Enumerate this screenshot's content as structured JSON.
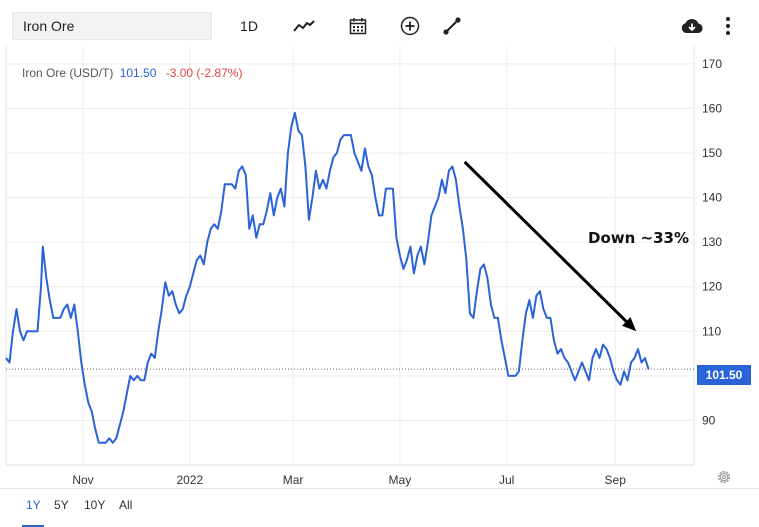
{
  "toolbar": {
    "search_value": "Iron Ore",
    "interval_label": "1D",
    "icons": [
      "line-chart-icon",
      "calendar-icon",
      "add-icon",
      "draw-icon",
      "download-icon",
      "more-icon"
    ]
  },
  "legend": {
    "name": "Iron Ore (USD/T)",
    "last": "101.50",
    "change": "-3.00 (-2.87%)"
  },
  "price_flag": "101.50",
  "annotation": "Down ~33%",
  "ranges": [
    "1Y",
    "5Y",
    "10Y",
    "All"
  ],
  "active_range": "1Y",
  "colors": {
    "line": "#2a63d8",
    "negative": "#e04646",
    "grid": "#ececec",
    "arrow": "#000000"
  },
  "chart_data": {
    "type": "line",
    "title": "",
    "xlabel": "",
    "ylabel": "",
    "yticks": [
      90,
      100,
      110,
      120,
      130,
      140,
      150,
      160,
      170
    ],
    "ytick_labels_shown": [
      "90",
      "110",
      "120",
      "130",
      "140",
      "150",
      "160",
      "170"
    ],
    "ylim": [
      80,
      174
    ],
    "xticks": [
      {
        "date": "2021-11-01",
        "label": "Nov"
      },
      {
        "date": "2022-01-01",
        "label": "2022"
      },
      {
        "date": "2022-03-01",
        "label": "Mar"
      },
      {
        "date": "2022-05-01",
        "label": "May"
      },
      {
        "date": "2022-07-01",
        "label": "Jul"
      },
      {
        "date": "2022-09-01",
        "label": "Sep"
      }
    ],
    "xlim": [
      "2021-09-18",
      "2022-10-16"
    ],
    "grid": true,
    "reference_line": 101.5,
    "series": [
      {
        "points": [
          [
            "2021-09-18",
            104
          ],
          [
            "2021-09-20",
            103
          ],
          [
            "2021-09-22",
            110
          ],
          [
            "2021-09-24",
            115
          ],
          [
            "2021-09-26",
            110
          ],
          [
            "2021-09-28",
            108
          ],
          [
            "2021-09-30",
            110
          ],
          [
            "2021-10-04",
            110
          ],
          [
            "2021-10-06",
            110
          ],
          [
            "2021-10-08",
            120
          ],
          [
            "2021-10-09",
            129
          ],
          [
            "2021-10-11",
            122
          ],
          [
            "2021-10-13",
            117
          ],
          [
            "2021-10-15",
            113
          ],
          [
            "2021-10-17",
            113
          ],
          [
            "2021-10-19",
            113
          ],
          [
            "2021-10-21",
            115
          ],
          [
            "2021-10-23",
            116
          ],
          [
            "2021-10-25",
            113
          ],
          [
            "2021-10-27",
            116
          ],
          [
            "2021-10-29",
            110
          ],
          [
            "2021-10-31",
            103
          ],
          [
            "2021-11-02",
            98
          ],
          [
            "2021-11-04",
            94
          ],
          [
            "2021-11-06",
            92
          ],
          [
            "2021-11-08",
            88
          ],
          [
            "2021-11-10",
            85
          ],
          [
            "2021-11-12",
            85
          ],
          [
            "2021-11-14",
            85
          ],
          [
            "2021-11-16",
            86
          ],
          [
            "2021-11-18",
            85
          ],
          [
            "2021-11-20",
            86
          ],
          [
            "2021-11-22",
            89
          ],
          [
            "2021-11-24",
            92
          ],
          [
            "2021-11-26",
            96
          ],
          [
            "2021-11-28",
            100
          ],
          [
            "2021-11-30",
            99
          ],
          [
            "2021-12-02",
            100
          ],
          [
            "2021-12-04",
            99
          ],
          [
            "2021-12-06",
            99
          ],
          [
            "2021-12-08",
            103
          ],
          [
            "2021-12-10",
            105
          ],
          [
            "2021-12-12",
            104
          ],
          [
            "2021-12-14",
            110
          ],
          [
            "2021-12-16",
            115
          ],
          [
            "2021-12-18",
            121
          ],
          [
            "2021-12-20",
            118
          ],
          [
            "2021-12-22",
            119
          ],
          [
            "2021-12-24",
            116
          ],
          [
            "2021-12-26",
            114
          ],
          [
            "2021-12-28",
            115
          ],
          [
            "2021-12-30",
            118
          ],
          [
            "2022-01-01",
            120
          ],
          [
            "2022-01-03",
            123
          ],
          [
            "2022-01-05",
            126
          ],
          [
            "2022-01-07",
            127
          ],
          [
            "2022-01-09",
            125
          ],
          [
            "2022-01-11",
            130
          ],
          [
            "2022-01-13",
            133
          ],
          [
            "2022-01-15",
            134
          ],
          [
            "2022-01-17",
            133
          ],
          [
            "2022-01-19",
            137
          ],
          [
            "2022-01-21",
            143
          ],
          [
            "2022-01-23",
            143
          ],
          [
            "2022-01-25",
            143
          ],
          [
            "2022-01-27",
            142
          ],
          [
            "2022-01-29",
            146
          ],
          [
            "2022-01-31",
            147
          ],
          [
            "2022-02-02",
            145
          ],
          [
            "2022-02-04",
            133
          ],
          [
            "2022-02-06",
            136
          ],
          [
            "2022-02-08",
            131
          ],
          [
            "2022-02-10",
            134
          ],
          [
            "2022-02-12",
            134
          ],
          [
            "2022-02-14",
            137
          ],
          [
            "2022-02-16",
            141
          ],
          [
            "2022-02-18",
            136
          ],
          [
            "2022-02-20",
            140
          ],
          [
            "2022-02-22",
            142
          ],
          [
            "2022-02-24",
            138
          ],
          [
            "2022-02-26",
            150
          ],
          [
            "2022-02-28",
            156
          ],
          [
            "2022-03-02",
            159
          ],
          [
            "2022-03-04",
            155
          ],
          [
            "2022-03-06",
            154
          ],
          [
            "2022-03-08",
            147
          ],
          [
            "2022-03-10",
            135
          ],
          [
            "2022-03-12",
            140
          ],
          [
            "2022-03-14",
            146
          ],
          [
            "2022-03-16",
            142
          ],
          [
            "2022-03-18",
            144
          ],
          [
            "2022-03-20",
            142
          ],
          [
            "2022-03-22",
            146
          ],
          [
            "2022-03-24",
            149
          ],
          [
            "2022-03-26",
            150
          ],
          [
            "2022-03-28",
            153
          ],
          [
            "2022-03-30",
            154
          ],
          [
            "2022-04-01",
            154
          ],
          [
            "2022-04-03",
            154
          ],
          [
            "2022-04-05",
            150
          ],
          [
            "2022-04-07",
            148
          ],
          [
            "2022-04-09",
            146
          ],
          [
            "2022-04-11",
            151
          ],
          [
            "2022-04-13",
            147
          ],
          [
            "2022-04-15",
            145
          ],
          [
            "2022-04-17",
            140
          ],
          [
            "2022-04-19",
            136
          ],
          [
            "2022-04-21",
            136
          ],
          [
            "2022-04-23",
            142
          ],
          [
            "2022-04-25",
            142
          ],
          [
            "2022-04-27",
            142
          ],
          [
            "2022-04-29",
            131
          ],
          [
            "2022-05-01",
            127
          ],
          [
            "2022-05-03",
            124
          ],
          [
            "2022-05-05",
            126
          ],
          [
            "2022-05-07",
            129
          ],
          [
            "2022-05-09",
            123
          ],
          [
            "2022-05-11",
            127
          ],
          [
            "2022-05-13",
            129
          ],
          [
            "2022-05-15",
            125
          ],
          [
            "2022-05-17",
            130
          ],
          [
            "2022-05-19",
            136
          ],
          [
            "2022-05-21",
            138
          ],
          [
            "2022-05-23",
            140
          ],
          [
            "2022-05-25",
            144
          ],
          [
            "2022-05-27",
            141
          ],
          [
            "2022-05-29",
            146
          ],
          [
            "2022-05-31",
            147
          ],
          [
            "2022-06-02",
            144
          ],
          [
            "2022-06-04",
            138
          ],
          [
            "2022-06-06",
            133
          ],
          [
            "2022-06-08",
            126
          ],
          [
            "2022-06-10",
            114
          ],
          [
            "2022-06-12",
            113
          ],
          [
            "2022-06-14",
            119
          ],
          [
            "2022-06-16",
            124
          ],
          [
            "2022-06-18",
            125
          ],
          [
            "2022-06-20",
            122
          ],
          [
            "2022-06-22",
            116
          ],
          [
            "2022-06-24",
            113
          ],
          [
            "2022-06-26",
            113
          ],
          [
            "2022-06-28",
            108
          ],
          [
            "2022-06-30",
            104
          ],
          [
            "2022-07-02",
            100
          ],
          [
            "2022-07-04",
            100
          ],
          [
            "2022-07-06",
            100
          ],
          [
            "2022-07-08",
            101
          ],
          [
            "2022-07-10",
            108
          ],
          [
            "2022-07-12",
            114
          ],
          [
            "2022-07-14",
            117
          ],
          [
            "2022-07-16",
            113
          ],
          [
            "2022-07-18",
            118
          ],
          [
            "2022-07-20",
            119
          ],
          [
            "2022-07-22",
            115
          ],
          [
            "2022-07-24",
            113
          ],
          [
            "2022-07-26",
            113
          ],
          [
            "2022-07-28",
            108
          ],
          [
            "2022-07-30",
            105
          ],
          [
            "2022-08-01",
            106
          ],
          [
            "2022-08-03",
            104
          ],
          [
            "2022-08-05",
            103
          ],
          [
            "2022-08-07",
            101
          ],
          [
            "2022-08-09",
            99
          ],
          [
            "2022-08-11",
            101
          ],
          [
            "2022-08-13",
            103
          ],
          [
            "2022-08-15",
            101
          ],
          [
            "2022-08-17",
            99
          ],
          [
            "2022-08-19",
            104
          ],
          [
            "2022-08-21",
            106
          ],
          [
            "2022-08-23",
            104
          ],
          [
            "2022-08-25",
            107
          ],
          [
            "2022-08-27",
            106
          ],
          [
            "2022-08-29",
            104
          ],
          [
            "2022-08-31",
            101
          ],
          [
            "2022-09-02",
            99
          ],
          [
            "2022-09-04",
            98
          ],
          [
            "2022-09-06",
            101
          ],
          [
            "2022-09-08",
            99
          ],
          [
            "2022-09-10",
            103
          ],
          [
            "2022-09-12",
            104
          ],
          [
            "2022-09-14",
            106
          ],
          [
            "2022-09-16",
            103
          ],
          [
            "2022-09-18",
            104
          ],
          [
            "2022-09-20",
            101.5
          ]
        ]
      }
    ]
  }
}
